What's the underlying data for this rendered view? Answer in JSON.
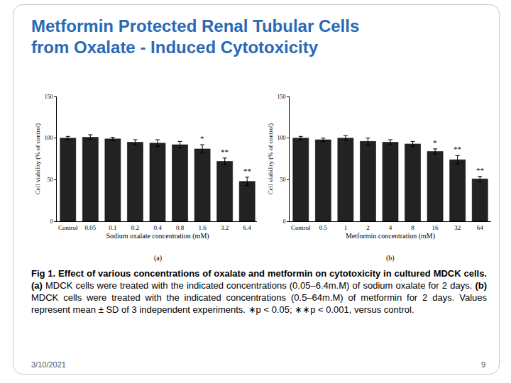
{
  "slide": {
    "title": [
      "Metformin Protected Renal Tubular Cells",
      "from Oxalate - Induced Cytotoxicity"
    ],
    "caption": [
      {
        "text": "Fig 1. Effect of various concentrations of oxalate and metformin on cytotoxicity in cultured MDCK cells.",
        "bold": true
      },
      {
        "text": " ",
        "bold": false
      },
      {
        "text": "(a)",
        "bold": true
      },
      {
        "text": " MDCK cells were treated with the indicated concentrations (0.05–6.4m.M) of sodium oxalate for 2 days. ",
        "bold": false
      },
      {
        "text": "(b)",
        "bold": true
      },
      {
        "text": " MDCK cells were treated with the indicated concentrations (0.5–64m.M) of metformin for 2 days. Values represent mean ± SD of 3 independent experiments. ∗p < 0.05; ∗∗p < 0.001, versus control.",
        "bold": false
      }
    ],
    "date": "3/10/2021",
    "page": "9"
  },
  "chart_data": [
    {
      "type": "bar",
      "label": "(a)",
      "x_label": "Sodium oxalate concentration (mM)",
      "y_label": "Cell viability (% of control)",
      "categories": [
        "Control",
        "0.05",
        "0.1",
        "0.2",
        "0.4",
        "0.8",
        "1.6",
        "3.2",
        "6.4"
      ],
      "values": [
        100,
        101,
        99,
        95,
        94,
        92,
        87,
        72,
        48
      ],
      "errors": [
        2,
        3,
        2,
        3,
        4,
        4,
        5,
        4,
        5
      ],
      "color": "#222222",
      "ylim": [
        0,
        150
      ],
      "yticks": [
        0,
        50,
        100,
        150
      ],
      "grid": false,
      "annotations": [
        {
          "category": "1.6",
          "text": "*"
        },
        {
          "category": "3.2",
          "text": "**"
        },
        {
          "category": "6.4",
          "text": "**"
        }
      ]
    },
    {
      "type": "bar",
      "label": "(b)",
      "x_label": "Metformin concentration (mM)",
      "y_label": "Cell viability (% of control)",
      "categories": [
        "Control",
        "0.5",
        "1",
        "2",
        "4",
        "8",
        "16",
        "32",
        "64"
      ],
      "values": [
        100,
        98,
        100,
        96,
        95,
        93,
        84,
        74,
        51
      ],
      "errors": [
        2,
        2,
        3,
        4,
        3,
        3,
        3,
        5,
        3
      ],
      "color": "#222222",
      "ylim": [
        0,
        150
      ],
      "yticks": [
        0,
        50,
        100,
        150
      ],
      "grid": false,
      "annotations": [
        {
          "category": "16",
          "text": "*"
        },
        {
          "category": "32",
          "text": "**"
        },
        {
          "category": "64",
          "text": "**"
        }
      ]
    }
  ]
}
